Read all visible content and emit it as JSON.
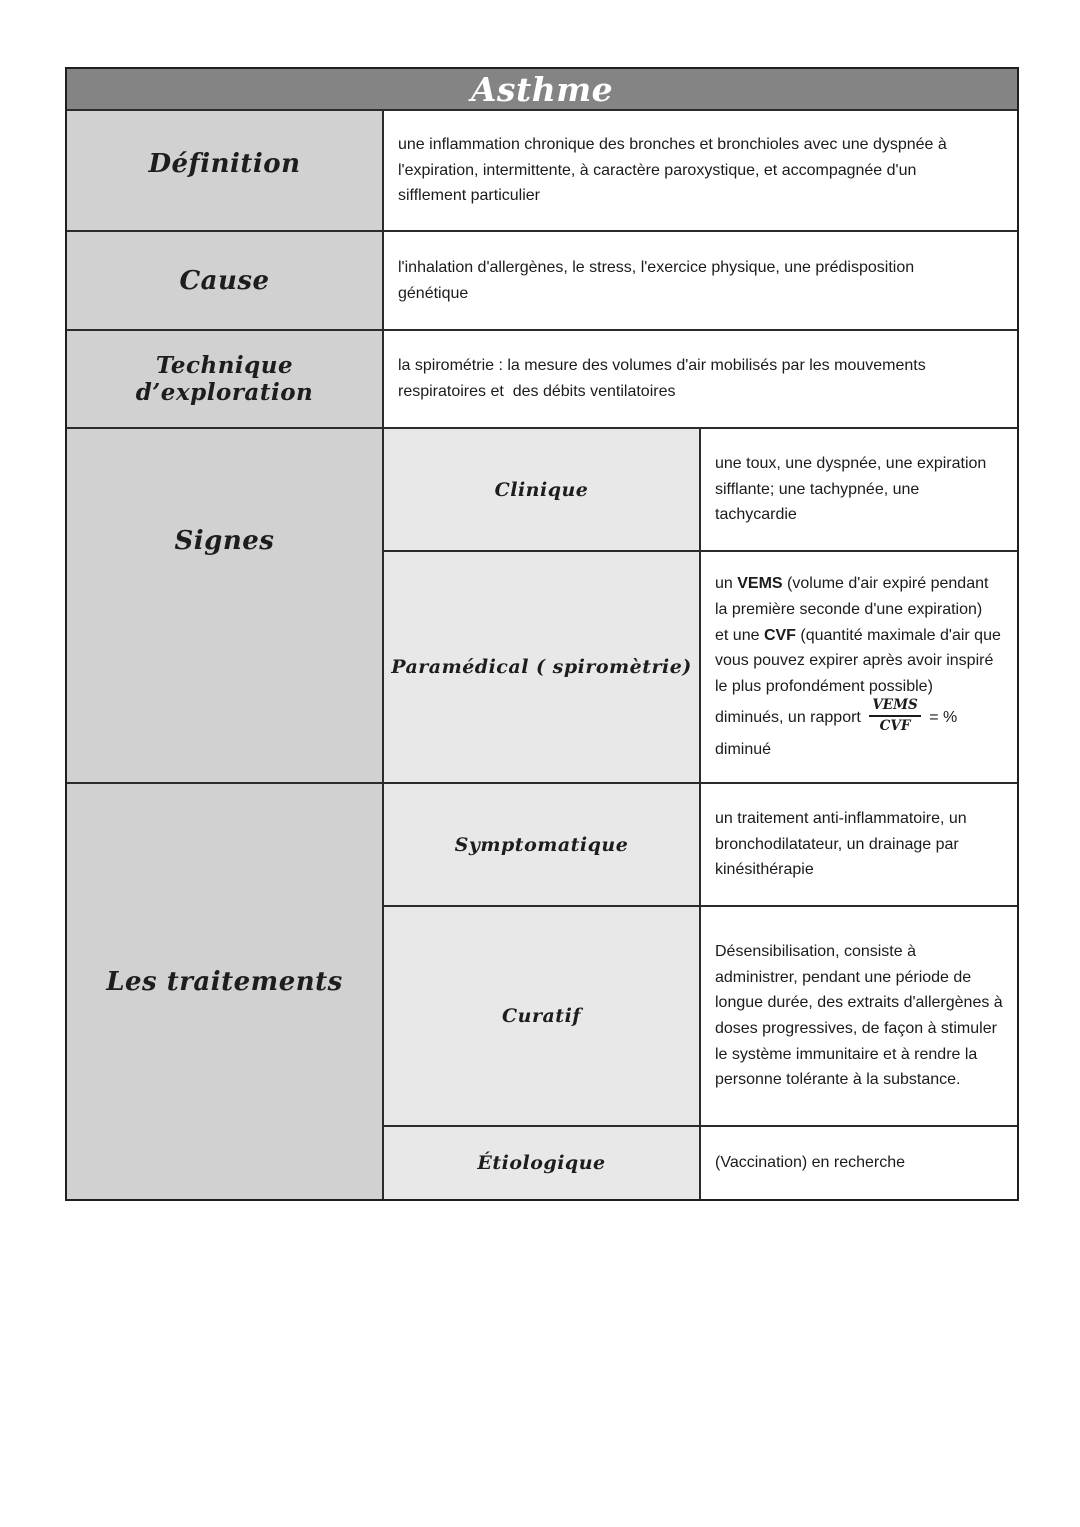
{
  "table": {
    "title": "Asthme",
    "colors": {
      "header_bg": "#848484",
      "header_text": "#ffffff",
      "label_bg": "#d2d1d1",
      "sublabel_bg": "#e9e8e8",
      "content_bg": "#ffffff",
      "border": "#2b2b2b",
      "text": "#1b1b1b"
    },
    "rows": {
      "definition": {
        "label": "Définition",
        "content": "une inflammation chronique des bronches et bronchioles avec une dyspnée à l'expiration, intermittente, à caractère paroxystique, et accompagnée d'un sifflement particulier"
      },
      "cause": {
        "label": "Cause",
        "content": "l'inhalation d'allergènes, le stress, l'exercice physique, une prédisposition génétique"
      },
      "technique": {
        "label": "Technique d’exploration",
        "content": "la spirométrie : la mesure des volumes d'air mobilisés par les mouvements respiratoires et  des débits ventilatoires"
      },
      "signes": {
        "label": "Signes",
        "clinique": {
          "label": "Clinique",
          "content": "une toux, une dyspnée, une expiration sifflante; une tachypnée, une tachycardie"
        },
        "paramedical": {
          "label": "Paramédical ( spiromètrie)",
          "parts": {
            "p1": "un ",
            "vems": "VEMS",
            "p2": " (volume d'air expiré pendant la première seconde d'une expiration)  et une ",
            "cvf": "CVF",
            "p3": " (quantité maximale d'air que vous pouvez expirer après avoir inspiré le plus profondément possible) diminués, un rapport ",
            "frac_num": "VEMS",
            "frac_den": "CVF",
            "p4": " = % diminué"
          }
        }
      },
      "traitements": {
        "label": "Les traitements",
        "symptomatique": {
          "label": "Symptomatique",
          "content": "un traitement anti-inflammatoire, un bronchodilatateur, un drainage par kinésithérapie"
        },
        "curatif": {
          "label": "Curatif",
          "content": "Désensibilisation, consiste à administrer, pendant une période de longue durée, des extraits d'allergènes à doses progressives, de façon à stimuler le système immunitaire et à rendre la personne tolérante à la substance."
        },
        "etiologique": {
          "label": "Étiologique",
          "content": "(Vaccination) en recherche"
        }
      }
    }
  }
}
